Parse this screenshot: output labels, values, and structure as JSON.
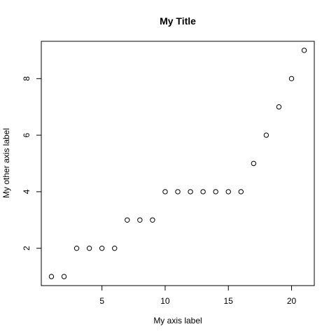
{
  "chart_data": {
    "type": "scatter",
    "title": "My Title",
    "xlabel": "My axis label",
    "ylabel": "My other axis label",
    "x": [
      1,
      2,
      3,
      4,
      5,
      6,
      7,
      8,
      9,
      10,
      11,
      12,
      13,
      14,
      15,
      16,
      17,
      18,
      19,
      20,
      21
    ],
    "y": [
      1,
      1,
      2,
      2,
      2,
      2,
      3,
      3,
      3,
      4,
      4,
      4,
      4,
      4,
      4,
      4,
      5,
      6,
      7,
      8,
      9
    ],
    "xlim": [
      0.2,
      21.8
    ],
    "ylim": [
      0.68,
      9.32
    ],
    "xticks": [
      5,
      10,
      15,
      20
    ],
    "yticks": [
      2,
      4,
      6,
      8
    ],
    "grid": false,
    "marker": "open-circle",
    "colors": {
      "marker": "#000000",
      "axis": "#000000",
      "background": "#ffffff"
    }
  }
}
